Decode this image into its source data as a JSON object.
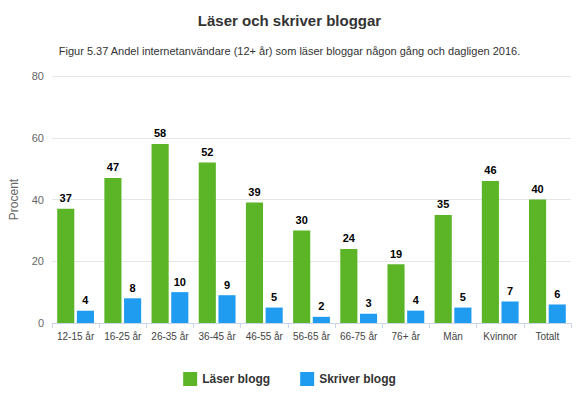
{
  "chart_data": {
    "type": "bar",
    "title": "Läser och skriver bloggar",
    "subtitle": "Figur 5.37 Andel internetanvändare (12+ år) som läser bloggar någon gång och dagligen 2016.",
    "y_label": "Procent",
    "categories": [
      "12-15 år",
      "16-25 år",
      "26-35 år",
      "36-45 år",
      "46-55 år",
      "56-65 år",
      "66-75 år",
      "76+ år",
      "Män",
      "Kvinnor",
      "Totalt"
    ],
    "series": [
      {
        "name": "Läser blogg",
        "color": "#5bb527",
        "values": [
          37,
          47,
          58,
          52,
          39,
          30,
          24,
          19,
          35,
          46,
          40
        ]
      },
      {
        "name": "Skriver blogg",
        "color": "#1f9cf0",
        "values": [
          4,
          8,
          10,
          9,
          5,
          2,
          3,
          4,
          5,
          7,
          6
        ]
      }
    ],
    "ylim": [
      0,
      80
    ],
    "yticks": [
      0,
      20,
      40,
      60,
      80
    ],
    "grid": true,
    "legend": "bottom",
    "data_labels": true
  }
}
